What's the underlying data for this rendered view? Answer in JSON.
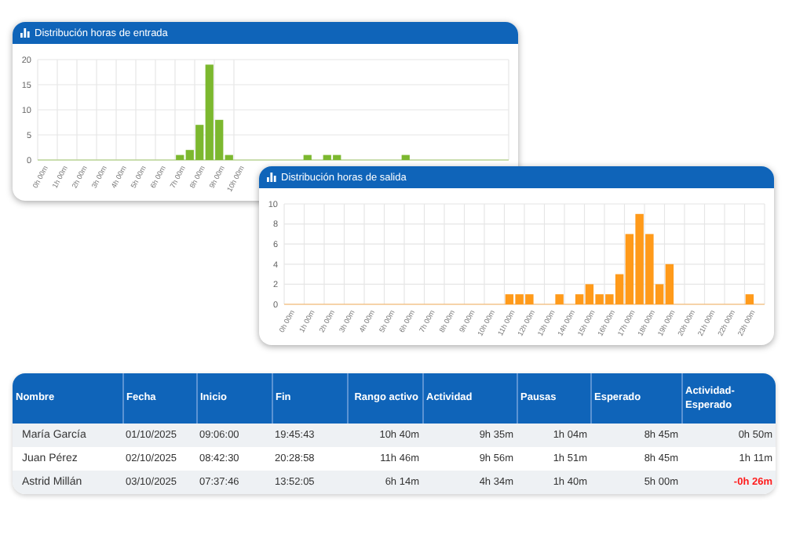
{
  "chart_data": [
    {
      "type": "bar",
      "title": "Distribución horas de entrada",
      "categories": [
        "0h 00m",
        null,
        "1h 00m",
        null,
        "2h 00m",
        null,
        "3h 00m",
        null,
        "4h 00m",
        null,
        "5h 00m",
        null,
        "6h 00m",
        null,
        "7h 00m",
        null,
        "8h 00m",
        null,
        "9h 00m",
        null,
        "10h 00m",
        null,
        null,
        null,
        null,
        null,
        null,
        null,
        null,
        null,
        null,
        null,
        null,
        null,
        null,
        null,
        null,
        null,
        null,
        null,
        null,
        null,
        null,
        null,
        null,
        null,
        null,
        null
      ],
      "values": [
        0,
        0,
        0,
        0,
        0,
        0,
        0,
        0,
        0,
        0,
        0,
        0,
        0,
        0,
        1,
        2,
        7,
        19,
        8,
        1,
        0,
        0,
        0,
        0,
        0,
        0,
        0,
        1,
        0,
        1,
        1,
        0,
        0,
        0,
        0,
        0,
        0,
        1,
        0,
        0,
        0,
        0,
        0,
        0,
        0,
        0,
        0,
        0
      ],
      "color": "#7cb82f",
      "ylim": [
        0,
        20
      ],
      "yticks": [
        0,
        5,
        10,
        15,
        20
      ],
      "grid": true
    },
    {
      "type": "bar",
      "title": "Distribución horas de salida",
      "categories": [
        "0h 00m",
        null,
        "1h 00m",
        null,
        "2h 00m",
        null,
        "3h 00m",
        null,
        "4h 00m",
        null,
        "5h 00m",
        null,
        "6h 00m",
        null,
        "7h 00m",
        null,
        "8h 00m",
        null,
        "9h 00m",
        null,
        "10h 00m",
        null,
        "11h 00m",
        null,
        "12h 00m",
        null,
        "13h 00m",
        null,
        "14h 00m",
        null,
        "15h 00m",
        null,
        "16h 00m",
        null,
        "17h 00m",
        null,
        "18h 00m",
        null,
        "19h 00m",
        null,
        "20h 00m",
        null,
        "21h 00m",
        null,
        "22h 00m",
        null,
        "23h 00m",
        null
      ],
      "values": [
        0,
        0,
        0,
        0,
        0,
        0,
        0,
        0,
        0,
        0,
        0,
        0,
        0,
        0,
        0,
        0,
        0,
        0,
        0,
        0,
        0,
        0,
        1,
        1,
        1,
        0,
        0,
        1,
        0,
        1,
        2,
        1,
        1,
        3,
        7,
        9,
        7,
        2,
        4,
        0,
        0,
        0,
        0,
        0,
        0,
        0,
        1,
        0
      ],
      "color": "#ff9a1a",
      "ylim": [
        0,
        10
      ],
      "yticks": [
        0,
        2,
        4,
        6,
        8,
        10
      ],
      "grid": true
    },
    {
      "type": "other",
      "categories": [
        "Nombre",
        "Fecha",
        "Inicio",
        "Fin",
        "Rango activo",
        "Actividad",
        "Pausas",
        "Esperado",
        "Actividad-Esperado"
      ],
      "cell_labels": [
        [
          "María García",
          "01/10/2025",
          "09:06:00",
          "19:45:43",
          "10h 40m",
          "9h 35m",
          "1h 04m",
          "8h 45m",
          "0h 50m"
        ],
        [
          "Juan Pérez",
          "02/10/2025",
          "08:42:30",
          "20:28:58",
          "11h 46m",
          "9h 56m",
          "1h 51m",
          "8h 45m",
          "1h 11m"
        ],
        [
          "Astrid Millán",
          "03/10/2025",
          "07:37:46",
          "13:52:05",
          "6h 14m",
          "4h 34m",
          "1h 40m",
          "5h 00m",
          "-0h 26m"
        ]
      ]
    }
  ]
}
